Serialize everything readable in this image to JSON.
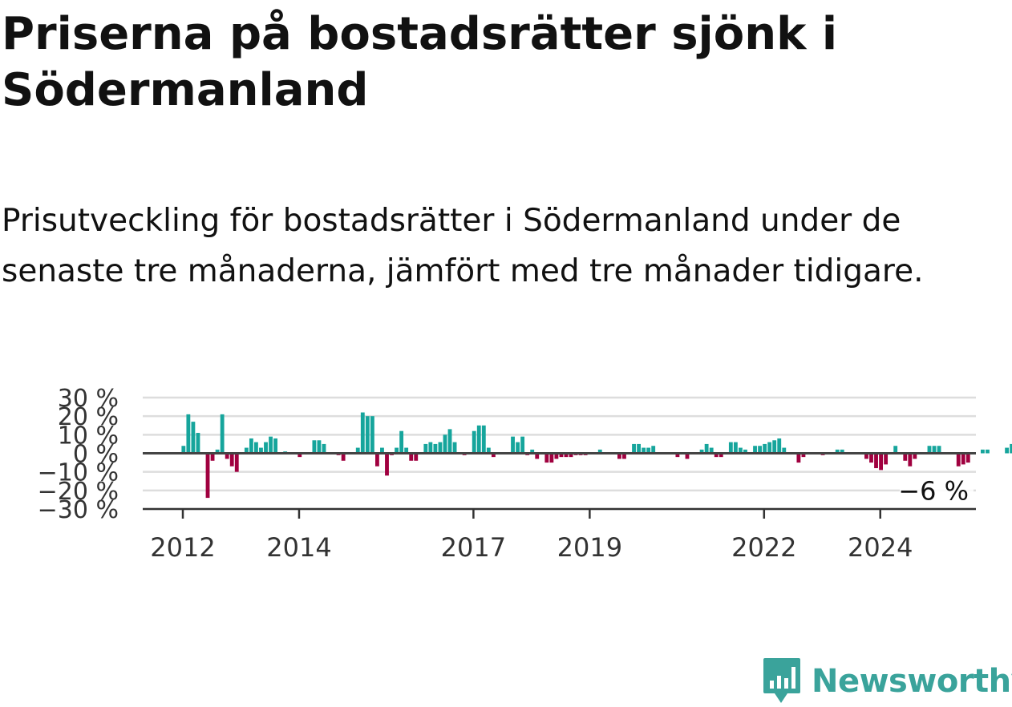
{
  "header": {
    "title": "Priserna på bostadsrätter sjönk i Södermanland",
    "subtitle": "Prisutveckling för bostadsrätter i Södermanland under de senaste tre månaderna, jämfört med tre månader tidigare."
  },
  "brand": {
    "name": "Newsworthy",
    "icon": "bar-chart-speech-bubble-icon",
    "color": "#3aa39b"
  },
  "chart_data": {
    "type": "bar",
    "x_start": "2012-01",
    "ylim": [
      -30,
      30
    ],
    "y_ticks": [
      30,
      20,
      10,
      0,
      -10,
      -20,
      -30
    ],
    "y_tick_labels": [
      "30 %",
      "20 %",
      "10 %",
      "0 %",
      "−10 %",
      "−20 %",
      "−30 %"
    ],
    "x_ticks": [
      "2012",
      "2014",
      "2017",
      "2019",
      "2022",
      "2024"
    ],
    "grid": true,
    "colors": {
      "positive": "#16a59c",
      "negative": "#a0003f",
      "zero_line": "#444444",
      "grid": "#dddddd"
    },
    "end_label": "−6 %",
    "values": [
      4,
      21,
      17,
      11,
      0,
      -24,
      -4,
      2,
      21,
      -3,
      -7,
      -10,
      0,
      3,
      8,
      6,
      3,
      6,
      9,
      8,
      0,
      1,
      0,
      0,
      -2,
      0,
      0,
      7,
      7,
      5,
      0,
      0,
      -1,
      -4,
      0,
      0,
      3,
      22,
      20,
      20,
      -7,
      3,
      -12,
      -1,
      3,
      12,
      3,
      -4,
      -4,
      0,
      5,
      6,
      5,
      6,
      10,
      13,
      6,
      0,
      -1,
      0,
      12,
      15,
      15,
      3,
      -2,
      0,
      0,
      0,
      9,
      6,
      9,
      -1,
      2,
      -3,
      0,
      -5,
      -5,
      -3,
      -2,
      -2,
      -2,
      -1,
      -1,
      -1,
      0,
      0,
      2,
      0,
      0,
      0,
      -3,
      -3,
      0,
      5,
      5,
      3,
      3,
      4,
      0,
      0,
      0,
      0,
      -2,
      0,
      -3,
      0,
      0,
      2,
      5,
      3,
      -2,
      -2,
      0,
      6,
      6,
      3,
      2,
      0,
      4,
      4,
      5,
      6,
      7,
      8,
      3,
      0,
      0,
      -5,
      -2,
      0,
      0,
      0,
      -1,
      0,
      0,
      2,
      2,
      0,
      0,
      0,
      0,
      -3,
      -5,
      -8,
      -9,
      -6,
      0,
      4,
      0,
      -4,
      -7,
      -3,
      0,
      0,
      4,
      4,
      4,
      0,
      0,
      0,
      -7,
      -6,
      -5,
      0,
      0,
      2,
      2,
      0,
      0,
      0,
      3,
      5,
      3,
      -2,
      -6
    ]
  }
}
